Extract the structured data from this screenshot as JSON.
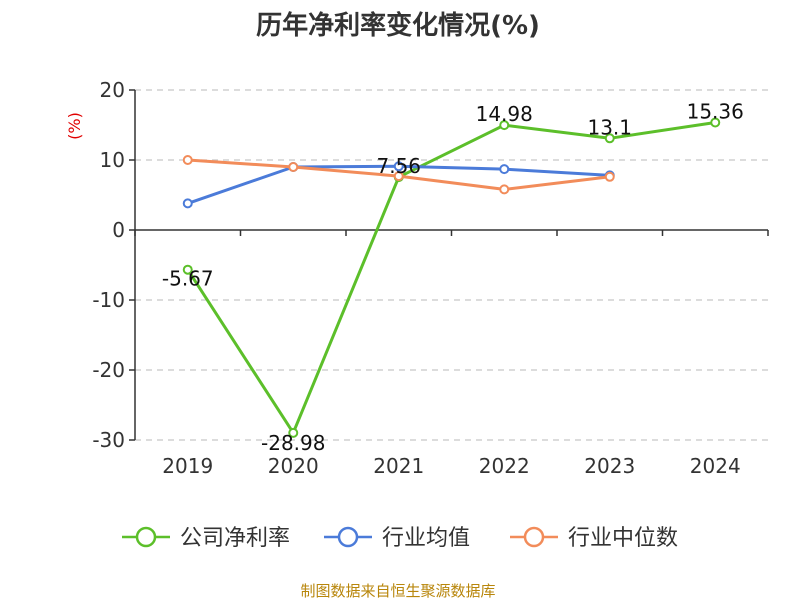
{
  "chart_data": {
    "type": "line",
    "title": "历年净利率变化情况(%)",
    "ylabel": "(%)",
    "xlabel": "",
    "categories": [
      "2019",
      "2020",
      "2021",
      "2022",
      "2023",
      "2024"
    ],
    "ylim": [
      -30,
      20
    ],
    "yticks": [
      -30,
      -20,
      -10,
      0,
      10,
      20
    ],
    "grid": true,
    "legend_position": "bottom",
    "series": [
      {
        "name": "公司净利率",
        "color": "#5cbf2a",
        "values": [
          -5.67,
          -28.98,
          7.56,
          14.98,
          13.1,
          15.36
        ],
        "labels": [
          "-5.67",
          "-28.98",
          "7.56",
          "14.98",
          "13.1",
          "15.36"
        ]
      },
      {
        "name": "行业均值",
        "color": "#4b7bd9",
        "values": [
          3.8,
          9.0,
          9.1,
          8.7,
          7.8,
          null
        ]
      },
      {
        "name": "行业中位数",
        "color": "#f28c5a",
        "values": [
          10.0,
          9.0,
          7.7,
          5.8,
          7.6,
          null
        ]
      }
    ]
  },
  "source": "制图数据来自恒生聚源数据库"
}
